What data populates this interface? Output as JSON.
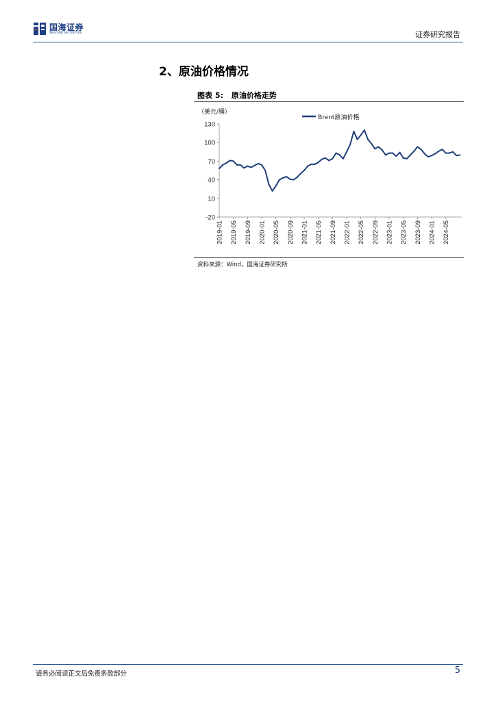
{
  "header": {
    "logo_cn": "国海证券",
    "logo_en": "SEALAND SECURITIES",
    "report_type": "证券研究报告"
  },
  "section": {
    "title": "2、原油价格情况"
  },
  "figure": {
    "label": "图表 5:",
    "title": "原油价格走势",
    "source": "资料来源：Wind，国海证券研究所"
  },
  "chart_data": {
    "type": "line",
    "unit_label": "（美元/桶）",
    "series": [
      {
        "name": "Brent原油价格",
        "color": "#1f3d7a",
        "x": [
          "2019-01",
          "2019-02",
          "2019-03",
          "2019-04",
          "2019-05",
          "2019-06",
          "2019-07",
          "2019-08",
          "2019-09",
          "2019-10",
          "2019-11",
          "2019-12",
          "2020-01",
          "2020-02",
          "2020-03",
          "2020-04",
          "2020-05",
          "2020-06",
          "2020-07",
          "2020-08",
          "2020-09",
          "2020-10",
          "2020-11",
          "2020-12",
          "2021-01",
          "2021-02",
          "2021-03",
          "2021-04",
          "2021-05",
          "2021-06",
          "2021-07",
          "2021-08",
          "2021-09",
          "2021-10",
          "2021-11",
          "2021-12",
          "2022-01",
          "2022-02",
          "2022-03",
          "2022-04",
          "2022-05",
          "2022-06",
          "2022-07",
          "2022-08",
          "2022-09",
          "2022-10",
          "2022-11",
          "2022-12",
          "2023-01",
          "2023-02",
          "2023-03",
          "2023-04",
          "2023-05",
          "2023-06",
          "2023-07",
          "2023-08",
          "2023-09",
          "2023-10",
          "2023-11",
          "2023-12",
          "2024-01",
          "2024-02",
          "2024-03",
          "2024-04",
          "2024-05",
          "2024-06",
          "2024-07",
          "2024-08",
          "2024-09"
        ],
        "values": [
          58,
          64,
          67,
          71,
          70,
          64,
          64,
          59,
          62,
          60,
          63,
          66,
          64,
          55,
          33,
          22,
          30,
          40,
          43,
          45,
          41,
          40,
          44,
          50,
          55,
          62,
          65,
          65,
          68,
          73,
          75,
          71,
          74,
          83,
          80,
          74,
          85,
          97,
          118,
          105,
          112,
          120,
          105,
          98,
          90,
          93,
          88,
          80,
          83,
          83,
          78,
          84,
          75,
          74,
          80,
          86,
          93,
          89,
          82,
          77,
          79,
          82,
          86,
          89,
          83,
          83,
          85,
          79,
          80
        ]
      }
    ],
    "yticks": [
      130,
      100,
      70,
      40,
      10,
      -20
    ],
    "ylim": [
      -20,
      130
    ],
    "xticks": [
      "2019-01",
      "2019-05",
      "2019-09",
      "2020-01",
      "2020-05",
      "2020-09",
      "2021-01",
      "2021-05",
      "2021-09",
      "2022-01",
      "2022-05",
      "2022-09",
      "2023-01",
      "2023-05",
      "2023-09",
      "2024-01",
      "2024-05"
    ],
    "legend_position": "top-center",
    "grid": false
  },
  "footer": {
    "disclaimer": "请务必阅读正文后免责条款部分",
    "page_number": "5"
  }
}
